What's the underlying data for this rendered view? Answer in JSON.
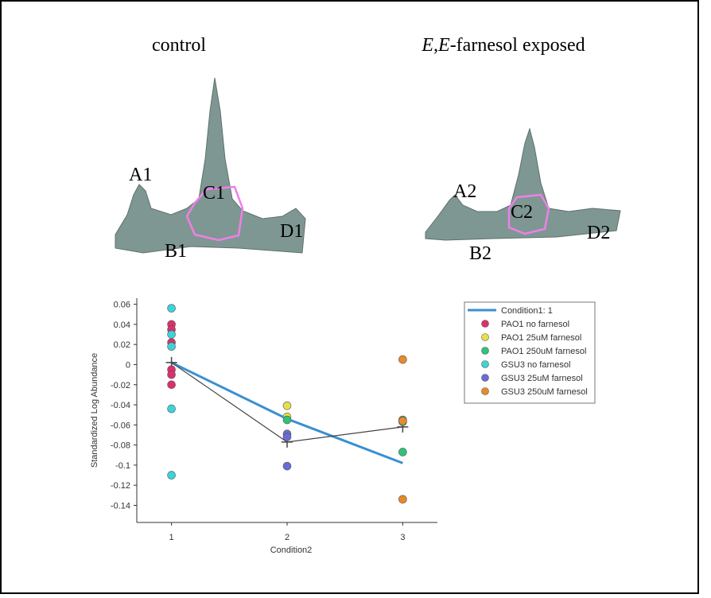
{
  "panels": {
    "left_title": "control",
    "right_title_italic": "E,E",
    "right_title_rest": "-farnesol exposed",
    "left_peaks": [
      "A1",
      "B1",
      "C1",
      "D1"
    ],
    "right_peaks": [
      "A2",
      "B2",
      "C2",
      "D2"
    ]
  },
  "chart_data": {
    "type": "scatter",
    "xlabel": "Condition2",
    "ylabel": "Standardized Log Abundance",
    "xlim": [
      0.7,
      3.3
    ],
    "xticks": [
      1,
      2,
      3
    ],
    "ylim": [
      -0.157,
      0.066
    ],
    "yticks": [
      0.06,
      0.04,
      0.02,
      0,
      -0.02,
      -0.04,
      -0.06,
      -0.08,
      -0.1,
      -0.12,
      -0.14
    ],
    "legend": "upper right",
    "series": [
      {
        "name": "Condition1: 1",
        "type": "line",
        "color": "#3a8fd0",
        "x": [
          1,
          2,
          3
        ],
        "values": [
          0.002,
          -0.054,
          -0.098
        ]
      },
      {
        "type": "line",
        "color": "#444444",
        "x": [
          1,
          2,
          3
        ],
        "values": [
          0.002,
          -0.077,
          -0.062
        ]
      },
      {
        "name": "PAO1 no farnesol",
        "color": "#dd2f6e",
        "x": [
          1,
          1,
          1,
          1,
          1,
          1
        ],
        "values": [
          0.04,
          0.035,
          0.022,
          -0.005,
          -0.01,
          -0.02
        ]
      },
      {
        "name": "PAO1 25uM farnesol",
        "color": "#e8df4a",
        "x": [
          2,
          2
        ],
        "values": [
          -0.041,
          -0.052
        ]
      },
      {
        "name": "PAO1 250uM farnesol",
        "color": "#2fc27a",
        "x": [
          2,
          3,
          3,
          3
        ],
        "values": [
          -0.055,
          -0.055,
          -0.057,
          -0.087
        ]
      },
      {
        "name": "GSU3 no farnesol",
        "color": "#3dd3d8",
        "x": [
          1,
          1,
          1,
          1,
          1
        ],
        "values": [
          0.056,
          0.03,
          0.018,
          -0.044,
          -0.11
        ]
      },
      {
        "name": "GSU3 25uM farnesol",
        "color": "#6b6bd6",
        "x": [
          2,
          2,
          2
        ],
        "values": [
          -0.069,
          -0.072,
          -0.101
        ]
      },
      {
        "name": "GSU3 250uM farnesol",
        "color": "#e88a2a",
        "x": [
          3,
          3,
          3
        ],
        "values": [
          0.005,
          -0.056,
          -0.134
        ]
      }
    ]
  }
}
